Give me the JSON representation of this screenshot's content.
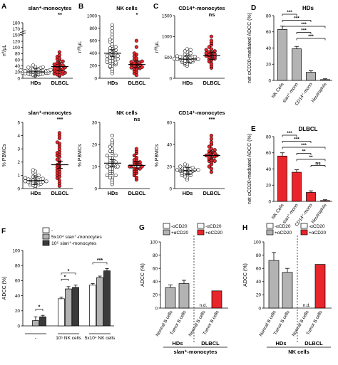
{
  "colors": {
    "open_dot": "#ffffff",
    "dlbcl_dot": "#e8262b",
    "bar_grey": "#b3b3b3",
    "bar_light": "#d9d9d9",
    "bar_dark": "#3a3a3a",
    "red": "#e8262b",
    "line": "#000000"
  },
  "chart_data": [
    {
      "id": "A_top",
      "letter": "A",
      "type": "scatter",
      "title": "slan⁺-monocytes",
      "ylabel": "nº/μL",
      "categories": [
        "HDs",
        "DLBCL"
      ],
      "ylim": [
        0,
        180
      ],
      "ticks": [
        "0",
        "20",
        "40",
        "60",
        "80",
        "100",
        "120",
        "150",
        "170",
        "180"
      ],
      "significance": "**",
      "series": [
        {
          "values": [
            10,
            12,
            14,
            15,
            16,
            18,
            19,
            20,
            20,
            21,
            22,
            22,
            23,
            24,
            25,
            25,
            26,
            27,
            28,
            29,
            30,
            32,
            34,
            35,
            36,
            10,
            8,
            13,
            17,
            38,
            42,
            15,
            18,
            24
          ]
        },
        {
          "values": [
            8,
            10,
            12,
            15,
            18,
            20,
            22,
            25,
            28,
            30,
            32,
            35,
            38,
            40,
            42,
            45,
            48,
            50,
            55,
            60,
            62,
            65,
            70,
            75,
            30,
            20,
            14,
            85
          ]
        }
      ],
      "means": [
        21,
        38
      ]
    },
    {
      "id": "B_top",
      "letter": "B",
      "type": "scatter",
      "title": "NK cells",
      "ylabel": "nº/μL",
      "categories": [
        "HDs",
        "DLBCL"
      ],
      "ylim": [
        0,
        1000
      ],
      "ticks": [
        "0",
        "200",
        "400",
        "600",
        "800",
        "1000"
      ],
      "significance": "*",
      "series": [
        {
          "values": [
            80,
            120,
            150,
            180,
            200,
            220,
            250,
            260,
            280,
            300,
            310,
            330,
            350,
            360,
            380,
            400,
            420,
            450,
            470,
            500,
            520,
            550,
            580,
            600,
            620,
            650,
            700,
            750,
            800,
            850,
            400,
            300,
            250,
            200,
            330,
            440,
            480,
            360,
            280,
            240
          ]
        },
        {
          "values": [
            50,
            80,
            100,
            120,
            140,
            160,
            180,
            200,
            210,
            220,
            240,
            250,
            260,
            280,
            300,
            320,
            350,
            380,
            400,
            500,
            150,
            170,
            230,
            190,
            270,
            600
          ]
        }
      ],
      "means": [
        400,
        220
      ]
    },
    {
      "id": "C_top",
      "letter": "C",
      "type": "scatter",
      "title": "CD14⁺-monocytes",
      "ylabel": "nº/μL",
      "categories": [
        "HDs",
        "DLBCL"
      ],
      "ylim": [
        0,
        1500
      ],
      "ticks": [
        "0",
        "500",
        "1000",
        "1500"
      ],
      "significance": "ns",
      "series": [
        {
          "values": [
            300,
            330,
            350,
            370,
            390,
            400,
            410,
            420,
            430,
            440,
            450,
            460,
            470,
            480,
            490,
            500,
            510,
            520,
            530,
            550,
            570,
            600,
            620,
            650,
            680,
            700,
            450,
            420,
            480,
            510,
            460,
            390
          ]
        },
        {
          "values": [
            250,
            300,
            350,
            400,
            430,
            450,
            480,
            500,
            520,
            540,
            560,
            580,
            600,
            620,
            650,
            680,
            700,
            750,
            800,
            850,
            900,
            1000,
            550,
            470,
            630
          ]
        }
      ],
      "means": [
        460,
        540
      ]
    },
    {
      "id": "A_bot",
      "type": "scatter",
      "title": "slan⁺-monocytes",
      "ylabel": "% PBMCs",
      "categories": [
        "HDs",
        "DLBCL"
      ],
      "ylim": [
        0,
        5
      ],
      "ticks": [
        "0",
        "1",
        "2",
        "3",
        "4",
        "5"
      ],
      "significance": "***",
      "series": [
        {
          "values": [
            0.1,
            0.2,
            0.25,
            0.3,
            0.35,
            0.4,
            0.45,
            0.5,
            0.5,
            0.55,
            0.6,
            0.65,
            0.7,
            0.75,
            0.8,
            0.85,
            0.9,
            1.0,
            1.1,
            1.2,
            1.3,
            1.4,
            0.3,
            0.4,
            0.6,
            0.7,
            0.5,
            0.45,
            0.55,
            0.65
          ]
        },
        {
          "values": [
            0.2,
            0.4,
            0.6,
            0.8,
            1.0,
            1.2,
            1.4,
            1.5,
            1.6,
            1.8,
            2.0,
            2.2,
            2.4,
            2.5,
            2.6,
            2.8,
            3.0,
            3.2,
            3.5,
            3.8,
            4.0,
            4.2,
            1.1,
            1.7,
            2.1,
            2.7,
            0.9,
            1.3,
            3.4
          ]
        }
      ],
      "means": [
        0.6,
        1.8
      ]
    },
    {
      "id": "B_bot",
      "type": "scatter",
      "title": "NK cells",
      "ylabel": "% PBMCs",
      "categories": [
        "HDs",
        "DLBCL"
      ],
      "ylim": [
        0,
        30
      ],
      "ticks": [
        "0",
        "10",
        "20",
        "30"
      ],
      "significance": "ns",
      "series": [
        {
          "values": [
            2,
            3,
            4,
            5,
            6,
            7,
            8,
            9,
            10,
            10,
            11,
            12,
            12,
            13,
            14,
            15,
            16,
            17,
            18,
            19,
            20,
            21,
            22,
            24,
            8,
            9,
            11,
            13,
            15,
            6,
            7,
            14,
            17,
            10,
            12,
            5
          ]
        },
        {
          "values": [
            4,
            5,
            6,
            7,
            8,
            8,
            9,
            9,
            10,
            10,
            11,
            11,
            12,
            12,
            13,
            14,
            15,
            16,
            17,
            18,
            7,
            10,
            11,
            13,
            9,
            12
          ]
        }
      ],
      "means": [
        11.5,
        10.5
      ]
    },
    {
      "id": "C_bot",
      "type": "scatter",
      "title": "CD14⁺-monocytes",
      "ylabel": "% PBMCs",
      "categories": [
        "HDs",
        "DLBCL"
      ],
      "ylim": [
        0,
        60
      ],
      "ticks": [
        "0",
        "20",
        "40",
        "60"
      ],
      "significance": "***",
      "series": [
        {
          "values": [
            8,
            10,
            11,
            12,
            13,
            14,
            15,
            15,
            16,
            16,
            17,
            17,
            18,
            18,
            19,
            20,
            21,
            22,
            14,
            15,
            16,
            17,
            13,
            12,
            19,
            18
          ]
        },
        {
          "values": [
            15,
            18,
            20,
            22,
            24,
            25,
            26,
            28,
            28,
            29,
            30,
            30,
            31,
            32,
            33,
            34,
            35,
            36,
            38,
            40,
            42,
            45,
            48,
            27,
            32,
            25
          ]
        }
      ],
      "means": [
        16,
        30
      ]
    },
    {
      "id": "D",
      "letter": "D",
      "type": "bar",
      "title": "HDs",
      "ylabel": "net αCD20-mediated ADCC (%)",
      "ylim": [
        0,
        80
      ],
      "ticks": [
        "0",
        "20",
        "40",
        "60",
        "80"
      ],
      "categories": [
        "NK Cells",
        "slan⁺-mono",
        "CD14⁺-mono",
        "Neutrophils"
      ],
      "values": [
        63,
        39,
        10,
        1
      ],
      "errors": [
        4,
        3,
        2,
        1
      ],
      "brackets": [
        {
          "from": 0,
          "to": 1,
          "label": "***"
        },
        {
          "from": 0,
          "to": 2,
          "label": "***"
        },
        {
          "from": 0,
          "to": 3,
          "label": "***"
        },
        {
          "from": 1,
          "to": 2,
          "label": "***"
        },
        {
          "from": 1,
          "to": 3,
          "label": "***"
        }
      ]
    },
    {
      "id": "E",
      "letter": "E",
      "type": "bar",
      "title": "DLBCL",
      "ylabel": "net αCD20-mediated ADCC (%)",
      "ylim": [
        0,
        80
      ],
      "ticks": [
        "0",
        "20",
        "40",
        "60",
        "80"
      ],
      "categories": [
        "NK Cells",
        "slan⁺-mono",
        "CD14⁺-mono",
        "Neutrophils"
      ],
      "values": [
        56,
        36,
        11,
        1
      ],
      "errors": [
        4,
        3,
        2,
        1
      ],
      "brackets": [
        {
          "from": 0,
          "to": 1,
          "label": "***"
        },
        {
          "from": 0,
          "to": 2,
          "label": "***"
        },
        {
          "from": 0,
          "to": 3,
          "label": "***"
        },
        {
          "from": 1,
          "to": 2,
          "label": "**"
        },
        {
          "from": 1,
          "to": 3,
          "label": "**"
        },
        {
          "from": 2,
          "to": 3,
          "label": "ns"
        }
      ]
    },
    {
      "id": "F",
      "letter": "F",
      "type": "bar",
      "ylabel": "ADCC (%)",
      "ylim": [
        0,
        100
      ],
      "ticks": [
        "0",
        "20",
        "40",
        "60",
        "80",
        "100"
      ],
      "groups": [
        "-",
        "10⁵ NK cells",
        "5x10⁴ NK cells"
      ],
      "legend": [
        "-",
        "5x10⁴ slan⁺-monocytes",
        "10⁵ slan⁺-monocytes"
      ],
      "series": [
        {
          "values": [
            0,
            36,
            54
          ],
          "errors": [
            0,
            2,
            2
          ]
        },
        {
          "values": [
            7,
            49,
            64
          ],
          "errors": [
            5,
            3,
            2
          ]
        },
        {
          "values": [
            12,
            51,
            73
          ],
          "errors": [
            2,
            3,
            3
          ]
        }
      ],
      "brackets": [
        {
          "group": 0,
          "a": 1,
          "b": 2,
          "label": "*"
        },
        {
          "group": 1,
          "a": 0,
          "b": 1,
          "label": "*"
        },
        {
          "group": 1,
          "a": 0,
          "b": 2,
          "label": "*"
        },
        {
          "group": 2,
          "a": 0,
          "b": 2,
          "label": "***"
        }
      ]
    },
    {
      "id": "G",
      "letter": "G",
      "type": "bar",
      "ylabel": "ADCC (%)",
      "ylim": [
        0,
        100
      ],
      "ticks": [
        "0",
        "20",
        "40",
        "60",
        "80",
        "100"
      ],
      "categories": [
        "Normal B cells",
        "Tumor B cells",
        "Normal B cells",
        "Tumor B cells"
      ],
      "groups": [
        "HDs",
        "DLBCL"
      ],
      "footer": "slan⁺-monocytes",
      "legend": [
        "-αCD20",
        "+αCD20",
        "-αCD20",
        "+αCD20"
      ],
      "values": [
        31,
        37,
        0,
        26
      ],
      "errors": [
        4,
        5,
        0,
        0
      ],
      "nd_label": "n.d."
    },
    {
      "id": "H",
      "letter": "H",
      "type": "bar",
      "ylabel": "ADCC (%)",
      "ylim": [
        0,
        100
      ],
      "ticks": [
        "0",
        "20",
        "40",
        "60",
        "80",
        "100"
      ],
      "categories": [
        "Normal B cells",
        "Tumor B cells",
        "Normal B cells",
        "Tumor B cells"
      ],
      "groups": [
        "HDs",
        "DLBCL"
      ],
      "footer": "NK cells",
      "legend": [
        "-αCD20",
        "+αCD20",
        "-αCD20",
        "+αCD20"
      ],
      "values": [
        72,
        54,
        0,
        66
      ],
      "errors": [
        12,
        6,
        0,
        0
      ],
      "nd_label": "n.d."
    }
  ]
}
